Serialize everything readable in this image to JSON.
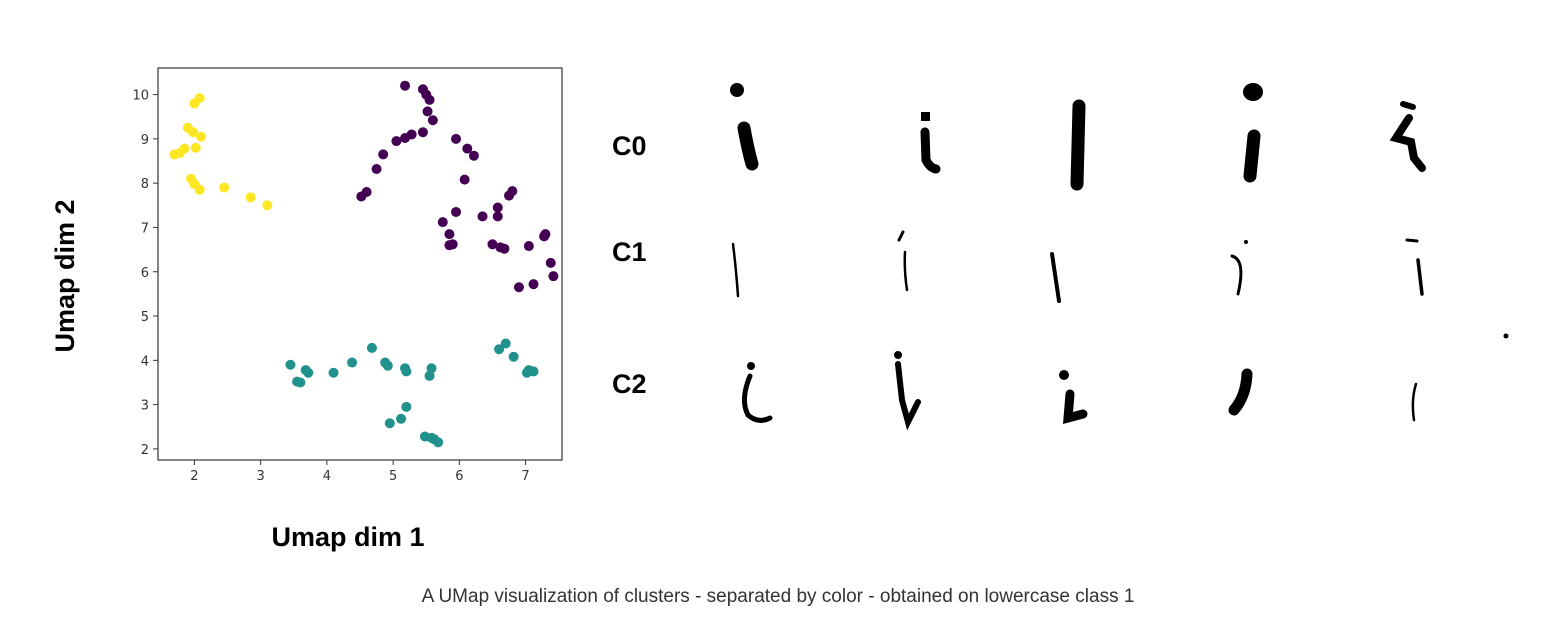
{
  "chart_data": {
    "type": "scatter",
    "xlabel": "Umap dim 1",
    "ylabel": "Umap dim 2",
    "xlim": [
      1.45,
      7.55
    ],
    "ylim": [
      1.75,
      10.6
    ],
    "xticks": [
      2,
      3,
      4,
      5,
      6,
      7
    ],
    "yticks": [
      2,
      3,
      4,
      5,
      6,
      7,
      8,
      9,
      10
    ],
    "grid": false,
    "series": [
      {
        "color": "#fde725",
        "points": [
          [
            2.0,
            9.8
          ],
          [
            2.08,
            9.92
          ],
          [
            1.9,
            9.25
          ],
          [
            1.98,
            9.15
          ],
          [
            2.1,
            9.05
          ],
          [
            1.7,
            8.65
          ],
          [
            1.78,
            8.68
          ],
          [
            1.85,
            8.78
          ],
          [
            2.02,
            8.8
          ],
          [
            1.95,
            8.1
          ],
          [
            2.0,
            7.98
          ],
          [
            2.08,
            7.85
          ],
          [
            2.45,
            7.9
          ],
          [
            2.85,
            7.68
          ],
          [
            3.1,
            7.5
          ]
        ]
      },
      {
        "color": "#440154",
        "points": [
          [
            5.18,
            10.2
          ],
          [
            5.45,
            10.12
          ],
          [
            5.5,
            10.0
          ],
          [
            5.55,
            9.88
          ],
          [
            5.52,
            9.62
          ],
          [
            5.6,
            9.42
          ],
          [
            5.45,
            9.15
          ],
          [
            5.28,
            9.1
          ],
          [
            5.18,
            9.02
          ],
          [
            5.05,
            8.95
          ],
          [
            4.85,
            8.65
          ],
          [
            4.75,
            8.32
          ],
          [
            4.6,
            7.8
          ],
          [
            4.52,
            7.7
          ],
          [
            5.95,
            9.0
          ],
          [
            6.12,
            8.78
          ],
          [
            6.22,
            8.62
          ],
          [
            6.08,
            8.08
          ],
          [
            6.35,
            7.25
          ],
          [
            6.58,
            7.45
          ],
          [
            6.58,
            7.25
          ],
          [
            6.75,
            7.72
          ],
          [
            6.8,
            7.82
          ],
          [
            5.95,
            7.35
          ],
          [
            5.75,
            7.12
          ],
          [
            5.85,
            6.85
          ],
          [
            5.85,
            6.6
          ],
          [
            5.9,
            6.62
          ],
          [
            6.5,
            6.62
          ],
          [
            6.62,
            6.55
          ],
          [
            6.68,
            6.52
          ],
          [
            7.05,
            6.58
          ],
          [
            7.28,
            6.8
          ],
          [
            7.3,
            6.85
          ],
          [
            7.38,
            6.2
          ],
          [
            7.42,
            5.9
          ],
          [
            7.12,
            5.72
          ],
          [
            6.9,
            5.65
          ]
        ]
      },
      {
        "color": "#21918c",
        "points": [
          [
            3.45,
            3.9
          ],
          [
            3.55,
            3.52
          ],
          [
            3.6,
            3.5
          ],
          [
            3.68,
            3.78
          ],
          [
            3.72,
            3.72
          ],
          [
            4.1,
            3.72
          ],
          [
            4.38,
            3.95
          ],
          [
            4.68,
            4.28
          ],
          [
            4.88,
            3.95
          ],
          [
            4.92,
            3.88
          ],
          [
            5.18,
            3.82
          ],
          [
            5.2,
            3.75
          ],
          [
            5.58,
            3.82
          ],
          [
            5.55,
            3.65
          ],
          [
            5.2,
            2.95
          ],
          [
            5.12,
            2.68
          ],
          [
            4.95,
            2.58
          ],
          [
            5.48,
            2.28
          ],
          [
            5.58,
            2.25
          ],
          [
            5.62,
            2.22
          ],
          [
            5.68,
            2.15
          ],
          [
            6.6,
            4.25
          ],
          [
            6.7,
            4.38
          ],
          [
            6.82,
            4.08
          ],
          [
            7.02,
            3.72
          ],
          [
            7.05,
            3.78
          ],
          [
            7.12,
            3.75
          ]
        ]
      }
    ]
  },
  "panel": {
    "rows": [
      "C0",
      "C1",
      "C2"
    ]
  },
  "caption": "A UMap visualization of clusters - separated by color - obtained on lowercase class 1"
}
